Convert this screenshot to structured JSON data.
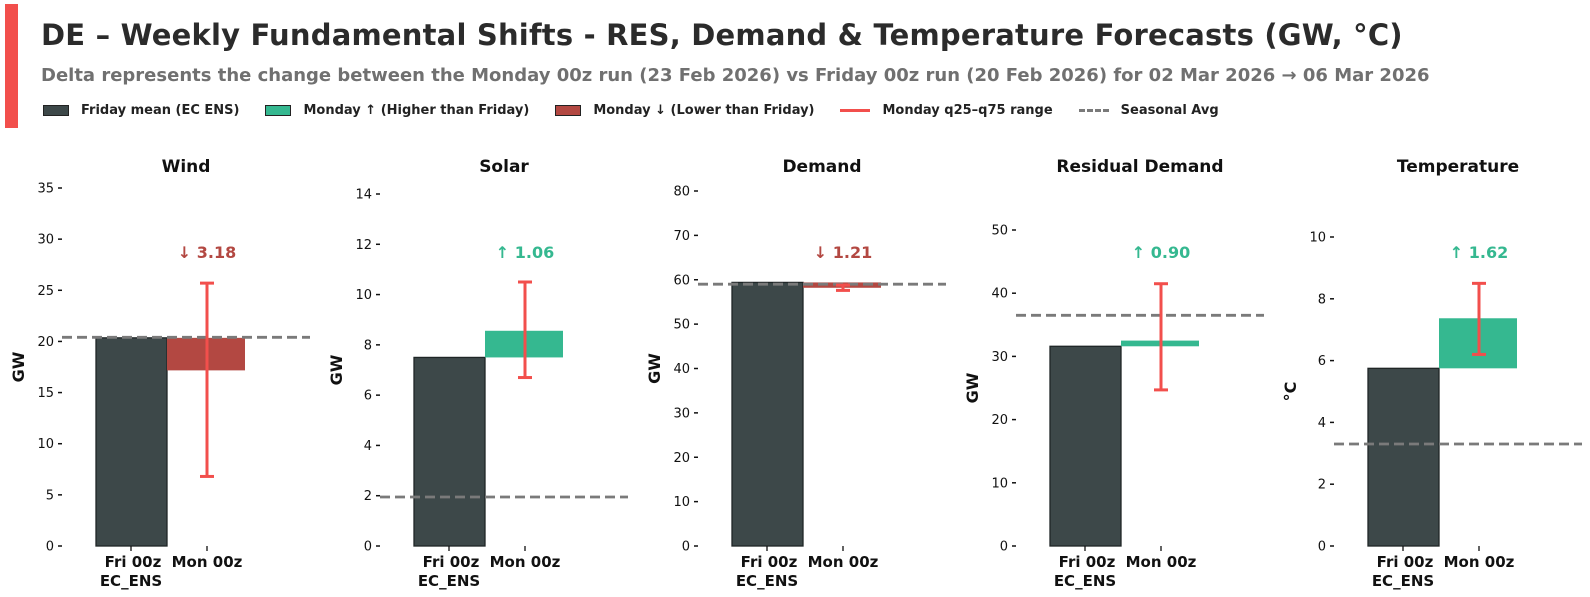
{
  "header": {
    "title": "DE – Weekly Fundamental Shifts - RES, Demand & Temperature Forecasts (GW, °C)",
    "subtitle": "Delta represents the change between the Monday 00z run (23 Feb 2026) vs Friday 00z run (20 Feb 2026) for 02 Mar 2026 → 06 Mar 2026"
  },
  "legend": [
    {
      "label": "Friday mean (EC ENS)",
      "kind": "swatch",
      "color": "#3d4849"
    },
    {
      "label": "Monday ↑ (Higher than Friday)",
      "kind": "swatch",
      "color": "#35b890"
    },
    {
      "label": "Monday ↓ (Lower than Friday)",
      "kind": "swatch",
      "color": "#b34842"
    },
    {
      "label": "Monday q25–q75 range",
      "kind": "line",
      "color": "#f24f4c"
    },
    {
      "label": "Seasonal Avg",
      "kind": "dash",
      "color": "#7a7a7a"
    }
  ],
  "colors": {
    "friday": "#3d4849",
    "up": "#35b890",
    "down": "#b34842",
    "range": "#f24f4c",
    "seasonal": "#7a7a7a"
  },
  "chart_data": [
    {
      "type": "bar",
      "title": "Wind",
      "ylabel": "GW",
      "categories": [
        "Fri 00z\nEC_ENS",
        "Mon 00z"
      ],
      "friday": 20.35,
      "monday": 17.17,
      "delta": -3.18,
      "delta_label": "↓ 3.18",
      "range": [
        6.8,
        25.7
      ],
      "seasonal": 20.4,
      "ylim": [
        0,
        35
      ],
      "yticks": [
        0,
        5,
        10,
        15,
        20,
        25,
        30,
        35
      ]
    },
    {
      "type": "bar",
      "title": "Solar",
      "ylabel": "GW",
      "categories": [
        "Fri 00z\nEC_ENS",
        "Mon 00z"
      ],
      "friday": 7.5,
      "monday": 8.56,
      "delta": 1.06,
      "delta_label": "↑ 1.06",
      "range": [
        6.7,
        10.5
      ],
      "seasonal": 1.95,
      "ylim": [
        0,
        14
      ],
      "yticks": [
        0,
        2,
        4,
        6,
        8,
        10,
        12,
        14
      ]
    },
    {
      "type": "bar",
      "title": "Demand",
      "ylabel": "GW",
      "categories": [
        "Fri 00z\nEC_ENS",
        "Mon 00z"
      ],
      "friday": 59.4,
      "monday": 58.19,
      "delta": -1.21,
      "delta_label": "↓ 1.21",
      "range": [
        57.6,
        58.8
      ],
      "seasonal": 59.0,
      "ylim": [
        0,
        80
      ],
      "yticks": [
        0,
        10,
        20,
        30,
        40,
        50,
        60,
        70,
        80
      ]
    },
    {
      "type": "bar",
      "title": "Residual Demand",
      "ylabel": "GW",
      "categories": [
        "Fri 00z\nEC_ENS",
        "Mon 00z"
      ],
      "friday": 31.6,
      "monday": 32.5,
      "delta": 0.9,
      "delta_label": "↑ 0.90",
      "range": [
        24.7,
        41.5
      ],
      "seasonal": 36.5,
      "ylim": [
        0,
        50
      ],
      "yticks": [
        0,
        10,
        20,
        30,
        40,
        50
      ]
    },
    {
      "type": "bar",
      "title": "Temperature",
      "ylabel": "°C",
      "categories": [
        "Fri 00z\nEC_ENS",
        "Mon 00z"
      ],
      "friday": 5.75,
      "monday": 7.37,
      "delta": 1.62,
      "delta_label": "↑ 1.62",
      "range": [
        6.2,
        8.5
      ],
      "seasonal": 3.3,
      "ylim": [
        0,
        10
      ],
      "yticks": [
        0,
        2,
        4,
        6,
        8,
        10
      ]
    }
  ]
}
